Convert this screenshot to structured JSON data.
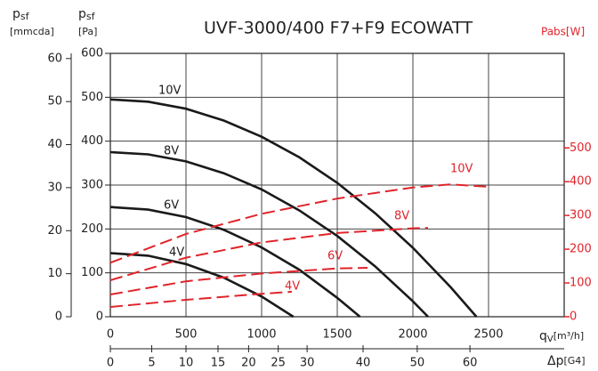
{
  "chart_data": {
    "type": "line",
    "title": "UVF-3000/400 F7+F9 ECOWATT",
    "y_label": {
      "main": "p",
      "sub": "sf",
      "unit": "[Pa]"
    },
    "y3_label": {
      "main": "p",
      "sub": "sf",
      "unit": "[mmcda]"
    },
    "y2_label": "Pabs[W]",
    "x_label": {
      "main": "q",
      "sub": "V",
      "unit": "[m³/h]"
    },
    "x2_label": {
      "main": "Δp",
      "unit": "[G4]"
    },
    "xlim": [
      0,
      3000
    ],
    "xticks": [
      0,
      500,
      1000,
      1500,
      2000,
      2500
    ],
    "ylim": [
      0,
      600
    ],
    "yticks": [
      0,
      100,
      200,
      300,
      400,
      500,
      600
    ],
    "y3lim": [
      0,
      61.2
    ],
    "y3ticks": [
      0,
      10,
      20,
      30,
      40,
      50,
      60
    ],
    "y2lim": [
      0,
      780
    ],
    "y2ticks": [
      0,
      100,
      200,
      300,
      400,
      500
    ],
    "y2color": "#e0242b",
    "x2lim": [
      0,
      78.4
    ],
    "x2exponent": 0.87,
    "x2ticks": [
      0,
      5,
      10,
      15,
      20,
      25,
      30,
      40,
      50,
      60
    ],
    "grid": true,
    "series": [
      {
        "name": "10V",
        "axis": "y",
        "color": "#1a1a1a",
        "x": [
          0,
          250,
          500,
          750,
          1000,
          1250,
          1500,
          1750,
          2000,
          2250,
          2420
        ],
        "values": [
          495,
          490,
          474,
          447,
          410,
          363,
          305,
          236,
          157,
          67,
          0
        ]
      },
      {
        "name": "8V",
        "axis": "y",
        "color": "#1a1a1a",
        "x": [
          0,
          250,
          500,
          750,
          1000,
          1250,
          1500,
          1750,
          2000,
          2100
        ],
        "values": [
          375,
          370,
          354,
          327,
          290,
          242,
          184,
          115,
          35,
          0
        ]
      },
      {
        "name": "6V",
        "axis": "y",
        "color": "#1a1a1a",
        "x": [
          0,
          250,
          500,
          750,
          1000,
          1250,
          1500,
          1650
        ],
        "values": [
          250,
          244,
          227,
          198,
          158,
          107,
          43,
          0
        ]
      },
      {
        "name": "4V",
        "axis": "y",
        "color": "#1a1a1a",
        "x": [
          0,
          250,
          500,
          750,
          1000,
          1210
        ],
        "values": [
          145,
          139,
          120,
          89,
          46,
          0
        ]
      },
      {
        "name": "10V",
        "axis": "y2",
        "dash": true,
        "color": "#e0242b",
        "x": [
          0,
          500,
          1000,
          1500,
          2000,
          2250,
          2500
        ],
        "values": [
          160,
          245,
          305,
          350,
          383,
          392,
          385
        ]
      },
      {
        "name": "8V",
        "axis": "y2",
        "dash": true,
        "color": "#e0242b",
        "x": [
          0,
          500,
          1000,
          1500,
          2000,
          2100
        ],
        "values": [
          108,
          175,
          220,
          248,
          262,
          263
        ]
      },
      {
        "name": "6V",
        "axis": "y2",
        "dash": true,
        "color": "#e0242b",
        "x": [
          0,
          500,
          1000,
          1500,
          1700
        ],
        "values": [
          66,
          105,
          128,
          143,
          145
        ]
      },
      {
        "name": "4V",
        "axis": "y2",
        "dash": true,
        "color": "#e0242b",
        "x": [
          0,
          500,
          1000,
          1200
        ],
        "values": [
          29,
          50,
          68,
          74
        ]
      }
    ]
  }
}
